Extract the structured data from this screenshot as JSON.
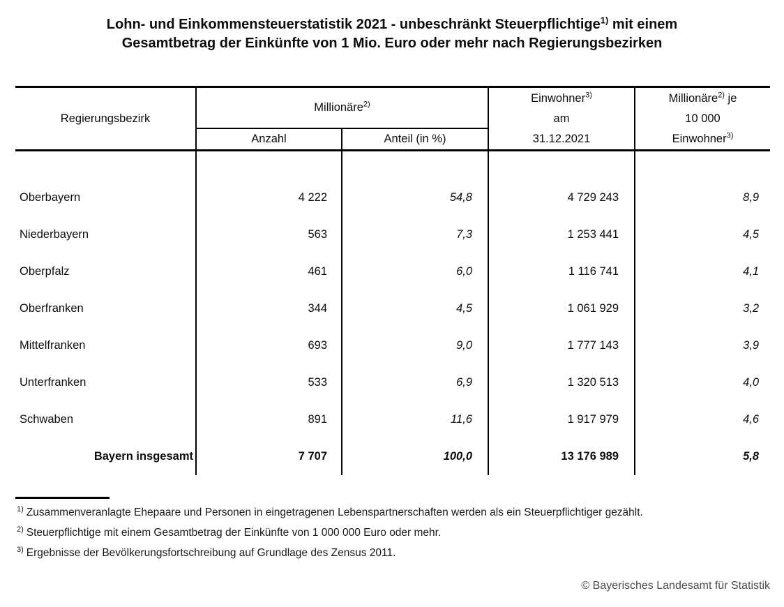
{
  "title": {
    "line1_pre": "Lohn- und Einkommensteuerstatistik 2021 - unbeschränkt Steuerpflichtige",
    "line1_sup": "1)",
    "line1_post": " mit einem",
    "line2": "Gesamtbetrag der Einkünfte von 1 Mio. Euro oder mehr nach Regierungsbezirken"
  },
  "table": {
    "headers": {
      "region": "Regierungsbezirk",
      "group_millionaire": "Millionäre",
      "group_millionaire_sup": "2)",
      "sub_anzahl": "Anzahl",
      "sub_anteil": "Anteil (in %)",
      "einwohner_l1": "Einwohner",
      "einwohner_l1_sup": "3)",
      "einwohner_l2": "am",
      "einwohner_l3": "31.12.2021",
      "density_l1a": "Millionäre",
      "density_l1_sup": "2)",
      "density_l1b": " je",
      "density_l2": "10 000",
      "density_l3a": "Einwohner",
      "density_l3_sup": "3)"
    },
    "rows": [
      {
        "region": "Oberbayern",
        "anzahl": "4 222",
        "anteil": "54,8",
        "einwohner": "4 729 243",
        "je10000": "8,9"
      },
      {
        "region": "Niederbayern",
        "anzahl": "563",
        "anteil": "7,3",
        "einwohner": "1 253 441",
        "je10000": "4,5"
      },
      {
        "region": "Oberpfalz",
        "anzahl": "461",
        "anteil": "6,0",
        "einwohner": "1 116 741",
        "je10000": "4,1"
      },
      {
        "region": "Oberfranken",
        "anzahl": "344",
        "anteil": "4,5",
        "einwohner": "1 061 929",
        "je10000": "3,2"
      },
      {
        "region": "Mittelfranken",
        "anzahl": "693",
        "anteil": "9,0",
        "einwohner": "1 777 143",
        "je10000": "3,9"
      },
      {
        "region": "Unterfranken",
        "anzahl": "533",
        "anteil": "6,9",
        "einwohner": "1 320 513",
        "je10000": "4,0"
      },
      {
        "region": "Schwaben",
        "anzahl": "891",
        "anteil": "11,6",
        "einwohner": "1 917 979",
        "je10000": "4,6"
      }
    ],
    "total": {
      "region": "Bayern insgesamt",
      "anzahl": "7 707",
      "anteil": "100,0",
      "einwohner": "13 176 989",
      "je10000": "5,8"
    }
  },
  "footnotes": [
    {
      "sup": "1)",
      "text": "Zusammenveranlagte Ehepaare und Personen in eingetragenen Lebenspartnerschaften werden als ein Steuerpflichtiger gezählt."
    },
    {
      "sup": "2)",
      "text": "Steuerpflichtige mit einem Gesamtbetrag der Einkünfte von 1 000 000 Euro oder mehr."
    },
    {
      "sup": "3)",
      "text": "Ergebnisse der Bevölkerungsfortschreibung auf Grundlage des Zensus 2011."
    }
  ],
  "copyright": "© Bayerisches Landesamt für Statistik"
}
